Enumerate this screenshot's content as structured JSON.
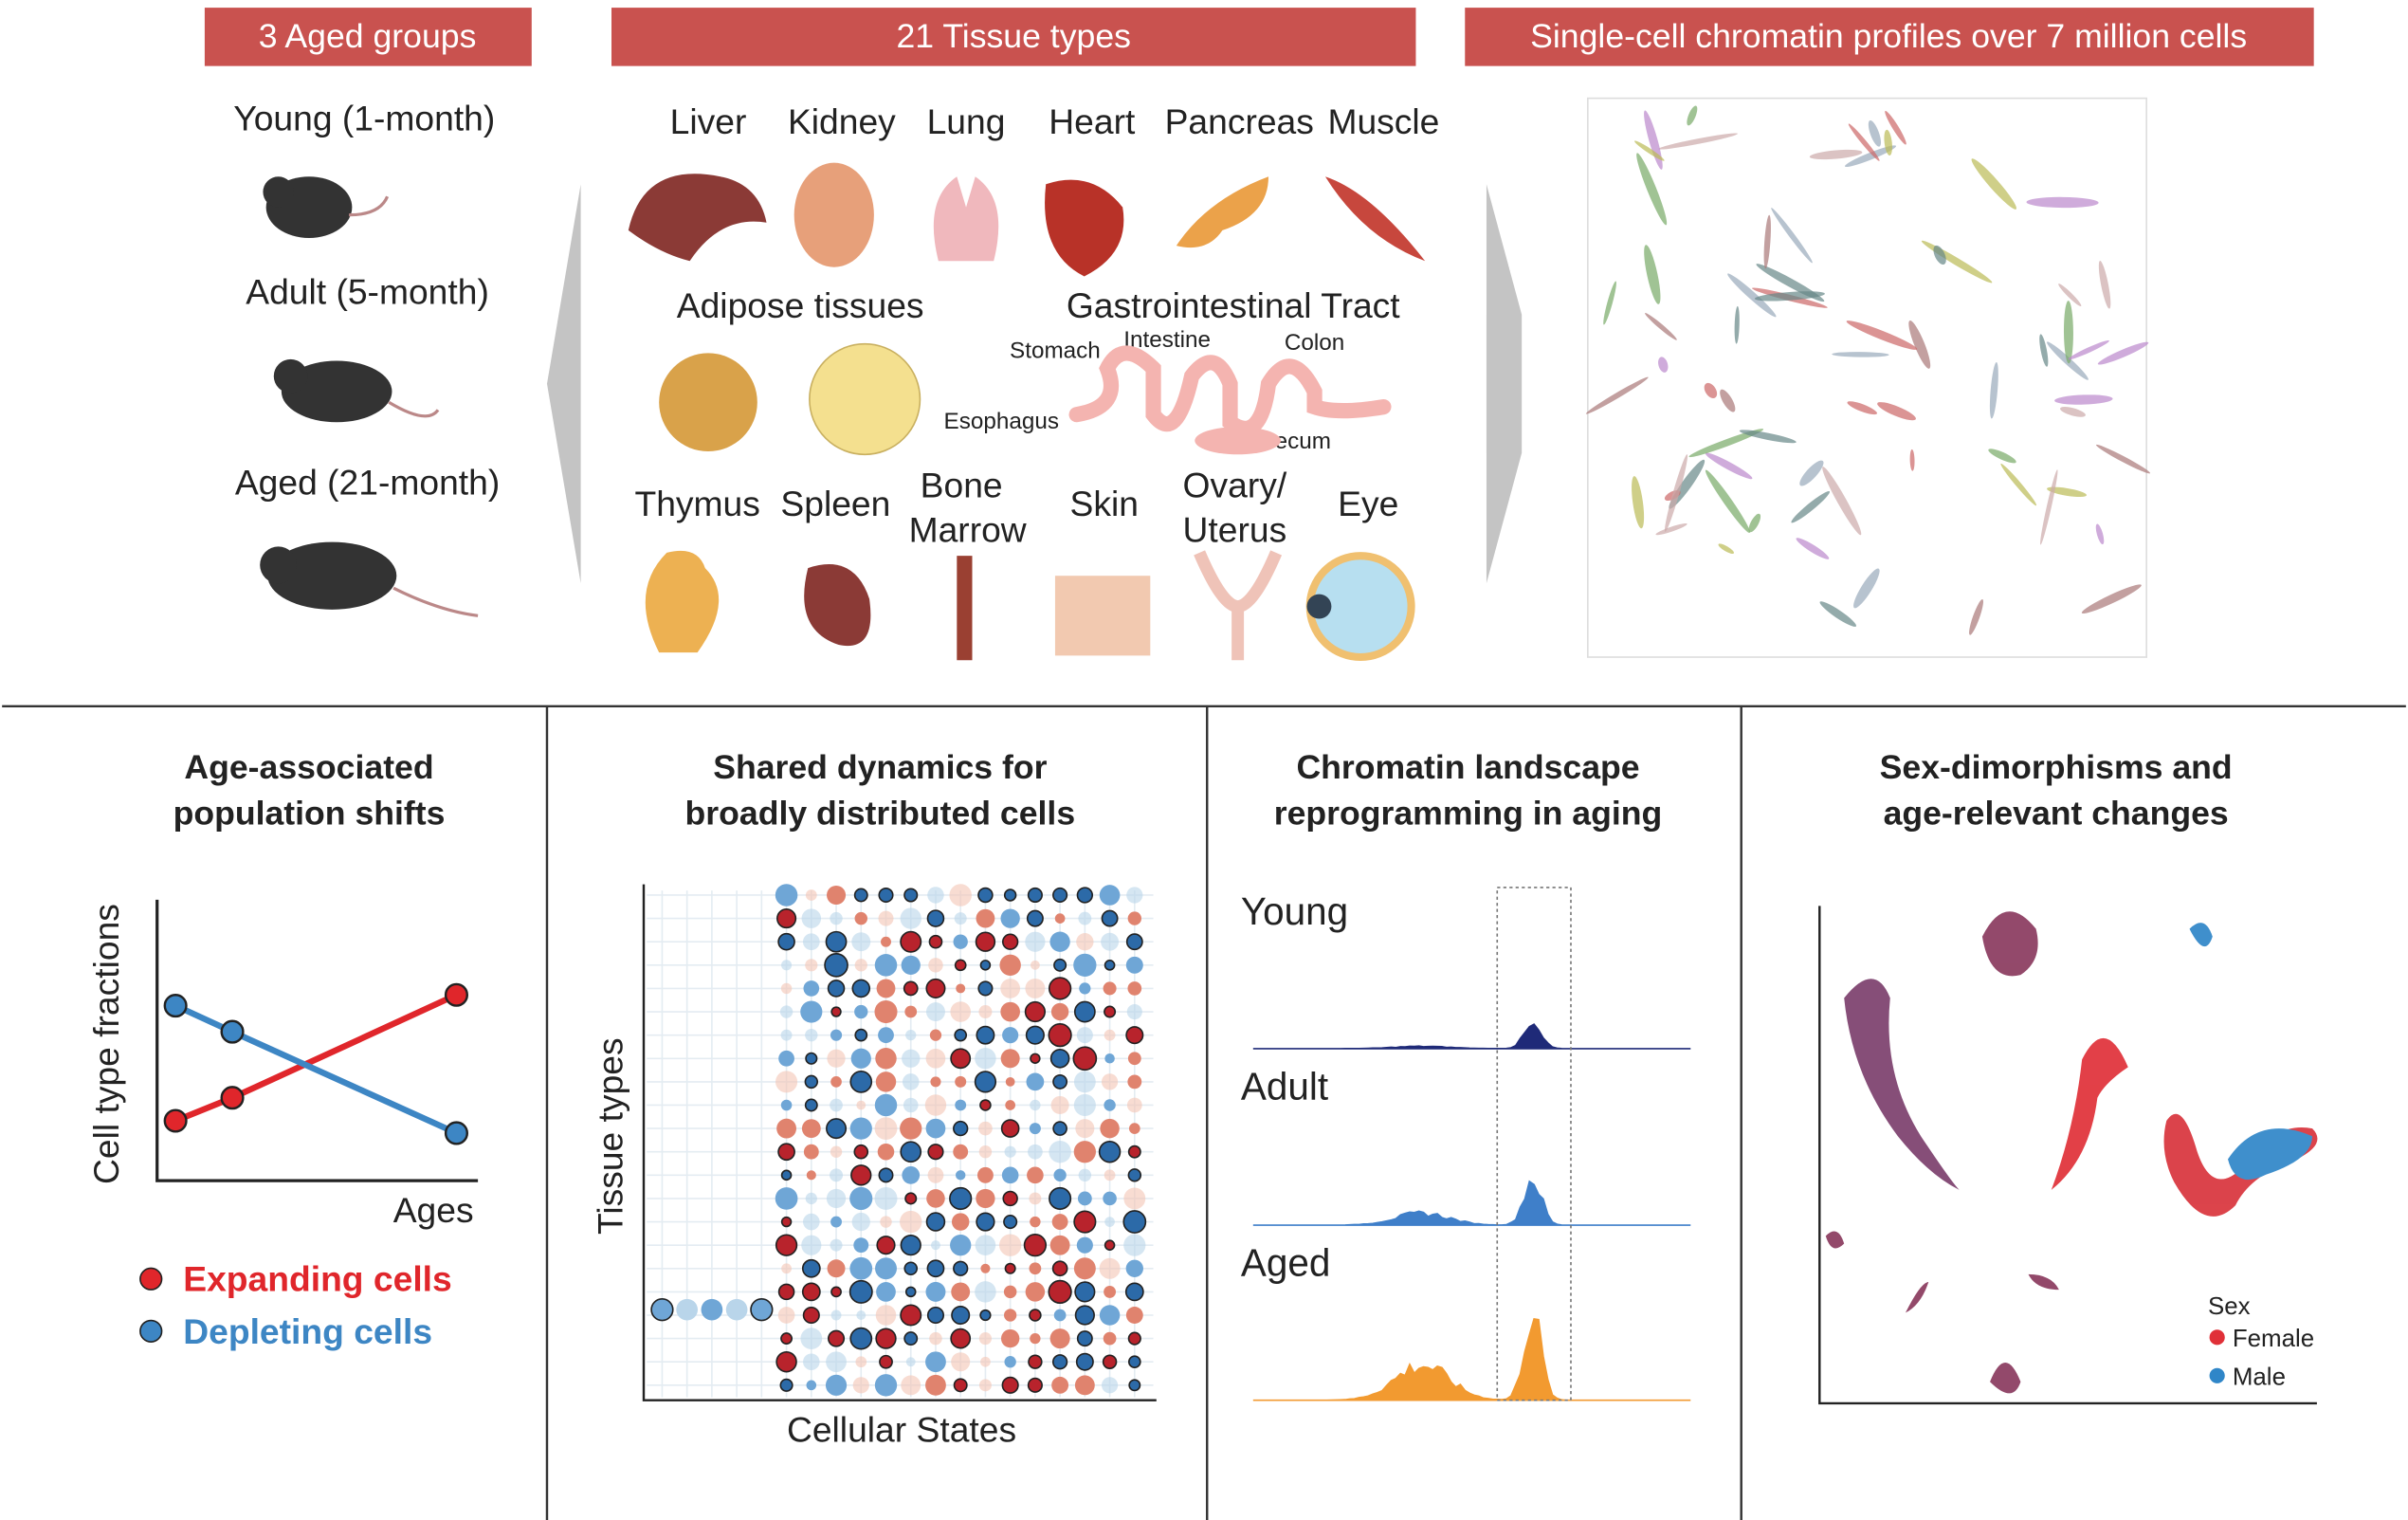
{
  "top": {
    "groups": {
      "title": "3 Aged groups",
      "items": [
        "Young (1-month)",
        "Adult (5-month)",
        "Aged (21-month)"
      ]
    },
    "tissues": {
      "title": "21 Tissue types",
      "row1": [
        "Liver",
        "Kidney",
        "Lung",
        "Heart",
        "Pancreas",
        "Muscle"
      ],
      "row2": [
        "Adipose tissues",
        "Gastrointestinal Tract"
      ],
      "gi_parts": [
        "Stomach",
        "Intestine",
        "Colon",
        "Esophagus",
        "Cecum"
      ],
      "row3": [
        "Thymus",
        "Spleen",
        "Skin",
        "Eye"
      ],
      "bone_marrow": [
        "Bone",
        "Marrow"
      ],
      "ovary_uterus": [
        "Ovary/",
        "Uterus"
      ]
    },
    "profiles": {
      "title": "Single-cell chromatin profiles over 7 million cells"
    }
  },
  "panels": [
    {
      "title": [
        "Age-associated",
        "population shifts"
      ],
      "y_label": "Cell type  fractions",
      "x_label": "Ages",
      "legend": [
        "Expanding cells",
        "Depleting cells"
      ]
    },
    {
      "title": [
        "Shared dynamics for",
        "broadly distributed cells"
      ],
      "y_label": "Tissue types",
      "x_label": "Cellular States"
    },
    {
      "title": [
        "Chromatin landscape",
        "reprogramming in aging"
      ],
      "tracks": [
        "Young",
        "Adult",
        "Aged"
      ]
    },
    {
      "title": [
        "Sex-dimorphisms and",
        "age-relevant changes"
      ],
      "legend_title": "Sex",
      "legend": [
        "Female",
        "Male"
      ]
    }
  ]
}
